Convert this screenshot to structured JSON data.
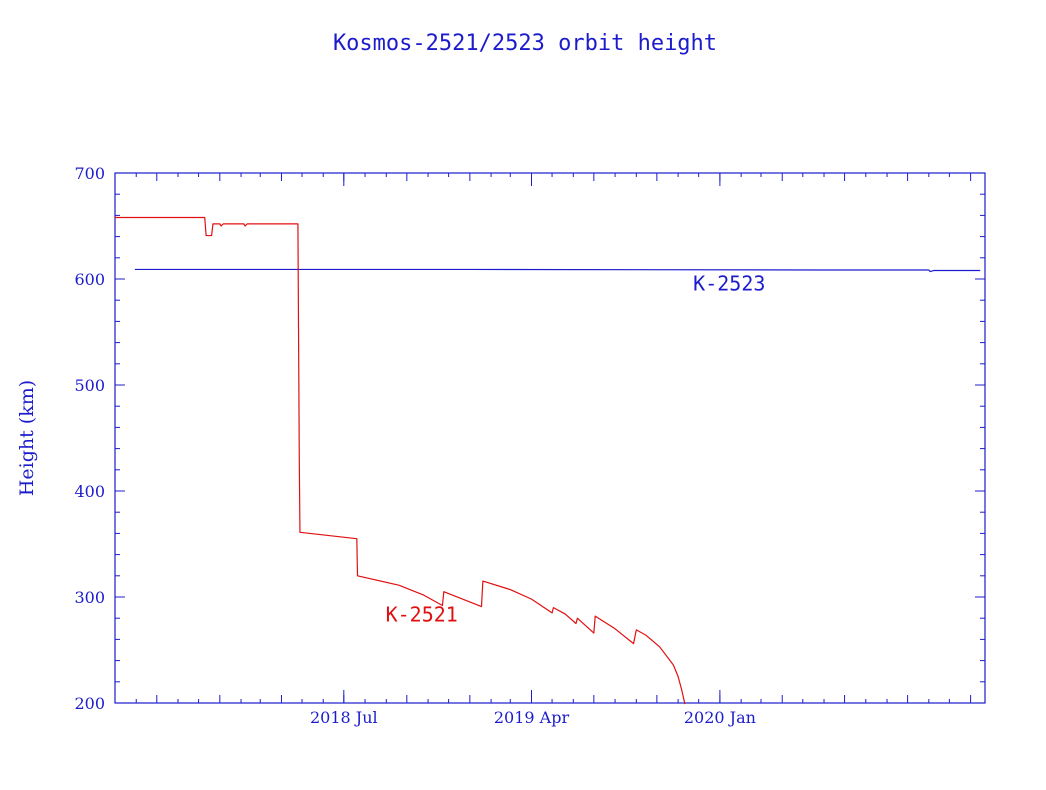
{
  "chart_data": {
    "type": "line",
    "title": "Kosmos-2521/2523 orbit height",
    "xlabel": "",
    "ylabel": "Height (km)",
    "ylim": [
      200,
      700
    ],
    "xlim": [
      "2017-08-01",
      "2021-01-22"
    ],
    "yticks": [
      200,
      300,
      400,
      500,
      600,
      700
    ],
    "xticks": [
      {
        "date": "2018-07-01",
        "label": "2018 Jul"
      },
      {
        "date": "2019-04-01",
        "label": "2019 Apr"
      },
      {
        "date": "2020-01-01",
        "label": "2020 Jan"
      }
    ],
    "grid": false,
    "colors": {
      "axis": "#1c1ccc",
      "K-2523": "#1c1ccc",
      "K-2521": "#e01010"
    },
    "series": [
      {
        "name": "K-2523",
        "color": "#1c1ccc",
        "points": [
          [
            "2017-08-30",
            609
          ],
          [
            "2019-01-01",
            609
          ],
          [
            "2020-06-01",
            608.5
          ],
          [
            "2020-11-01",
            608.5
          ],
          [
            "2020-11-03",
            607
          ],
          [
            "2020-11-08",
            608
          ],
          [
            "2021-01-15",
            608
          ]
        ]
      },
      {
        "name": "K-2521",
        "color": "#e01010",
        "points": [
          [
            "2017-08-01",
            659
          ],
          [
            "2017-08-02",
            658
          ],
          [
            "2017-12-10",
            658
          ],
          [
            "2017-12-12",
            641
          ],
          [
            "2017-12-20",
            641
          ],
          [
            "2017-12-22",
            652
          ],
          [
            "2018-01-01",
            652
          ],
          [
            "2018-01-03",
            650
          ],
          [
            "2018-01-06",
            652
          ],
          [
            "2018-02-05",
            652
          ],
          [
            "2018-02-07",
            650
          ],
          [
            "2018-02-10",
            652
          ],
          [
            "2018-04-25",
            652
          ],
          [
            "2018-04-27",
            430
          ],
          [
            "2018-04-28",
            361
          ],
          [
            "2018-07-20",
            355
          ],
          [
            "2018-07-21",
            320
          ],
          [
            "2018-09-20",
            311
          ],
          [
            "2018-10-25",
            302
          ],
          [
            "2018-11-22",
            292
          ],
          [
            "2018-11-24",
            305
          ],
          [
            "2019-01-18",
            291
          ],
          [
            "2019-01-20",
            315
          ],
          [
            "2019-03-01",
            307
          ],
          [
            "2019-04-01",
            298
          ],
          [
            "2019-05-01",
            285
          ],
          [
            "2019-05-03",
            290
          ],
          [
            "2019-05-20",
            284
          ],
          [
            "2019-06-05",
            275
          ],
          [
            "2019-06-07",
            280
          ],
          [
            "2019-07-01",
            266
          ],
          [
            "2019-07-03",
            282
          ],
          [
            "2019-08-01",
            270
          ],
          [
            "2019-08-28",
            256
          ],
          [
            "2019-09-01",
            269
          ],
          [
            "2019-09-15",
            264
          ],
          [
            "2019-10-05",
            253
          ],
          [
            "2019-10-25",
            236
          ],
          [
            "2019-11-01",
            225
          ],
          [
            "2019-11-06",
            213
          ],
          [
            "2019-11-11",
            199
          ]
        ]
      }
    ],
    "annotations": [
      {
        "text": "K-2523",
        "series": "K-2523",
        "at": [
          "2019-11-23",
          589
        ]
      },
      {
        "text": "K-2521",
        "series": "K-2521",
        "at": [
          "2018-08-31",
          277
        ]
      }
    ]
  }
}
